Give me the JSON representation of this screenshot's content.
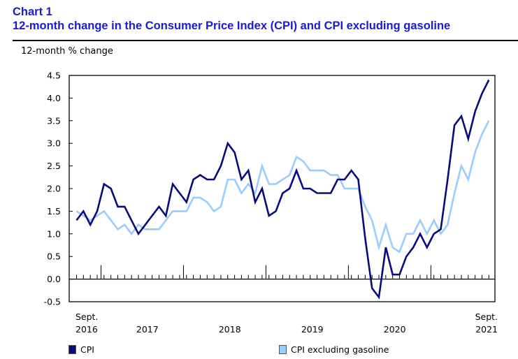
{
  "chart_data": {
    "type": "line",
    "label": "Chart 1",
    "title": "12-month change in the Consumer Price Index (CPI) and CPI excluding gasoline",
    "ylabel": "12-month % change",
    "xlabel": "",
    "ylim": [
      -0.5,
      4.5
    ],
    "yticks": [
      "4.5",
      "4.0",
      "3.5",
      "3.0",
      "2.5",
      "2.0",
      "1.5",
      "1.0",
      "0.5",
      "0.0",
      "-0.5"
    ],
    "x_start": "Sept. 2016",
    "x_end": "Sept. 2021",
    "x_labels": [
      {
        "month_index": 0,
        "line1": "Sept.",
        "line2": "2016"
      },
      {
        "month_index": 10,
        "line1": "",
        "line2": "2017"
      },
      {
        "month_index": 22,
        "line1": "",
        "line2": "2018"
      },
      {
        "month_index": 34,
        "line1": "",
        "line2": "2019"
      },
      {
        "month_index": 46,
        "line1": "",
        "line2": "2020"
      },
      {
        "month_index": 60,
        "line1": "Sept.",
        "line2": "2021"
      }
    ],
    "year_start_month_indices": [
      4,
      16,
      28,
      40,
      52
    ],
    "grid": false,
    "legend_position": "bottom",
    "series": [
      {
        "name": "CPI",
        "color": "#0a0a80",
        "values": [
          1.3,
          1.5,
          1.2,
          1.5,
          2.1,
          2.0,
          1.6,
          1.6,
          1.3,
          1.0,
          1.2,
          1.4,
          1.6,
          1.4,
          2.1,
          1.9,
          1.7,
          2.2,
          2.3,
          2.2,
          2.2,
          2.5,
          3.0,
          2.8,
          2.2,
          2.4,
          1.7,
          2.0,
          1.4,
          1.5,
          1.9,
          2.0,
          2.4,
          2.0,
          2.0,
          1.9,
          1.9,
          1.9,
          2.2,
          2.2,
          2.4,
          2.2,
          0.9,
          -0.2,
          -0.4,
          0.7,
          0.1,
          0.1,
          0.5,
          0.7,
          1.0,
          0.7,
          1.0,
          1.1,
          2.2,
          3.4,
          3.6,
          3.1,
          3.7,
          4.1,
          4.4
        ]
      },
      {
        "name": "CPI excluding gasoline",
        "color": "#99ccff",
        "values": [
          1.5,
          1.4,
          1.3,
          1.4,
          1.5,
          1.3,
          1.1,
          1.2,
          1.0,
          1.2,
          1.1,
          1.1,
          1.1,
          1.3,
          1.5,
          1.5,
          1.5,
          1.8,
          1.8,
          1.7,
          1.5,
          1.6,
          2.2,
          2.2,
          1.9,
          2.1,
          1.9,
          2.5,
          2.1,
          2.1,
          2.2,
          2.3,
          2.7,
          2.6,
          2.4,
          2.4,
          2.4,
          2.3,
          2.3,
          2.0,
          2.0,
          2.0,
          1.6,
          1.3,
          0.7,
          1.2,
          0.7,
          0.6,
          1.0,
          1.0,
          1.3,
          1.0,
          1.3,
          1.0,
          1.2,
          1.9,
          2.5,
          2.2,
          2.8,
          3.2,
          3.5
        ]
      }
    ]
  }
}
